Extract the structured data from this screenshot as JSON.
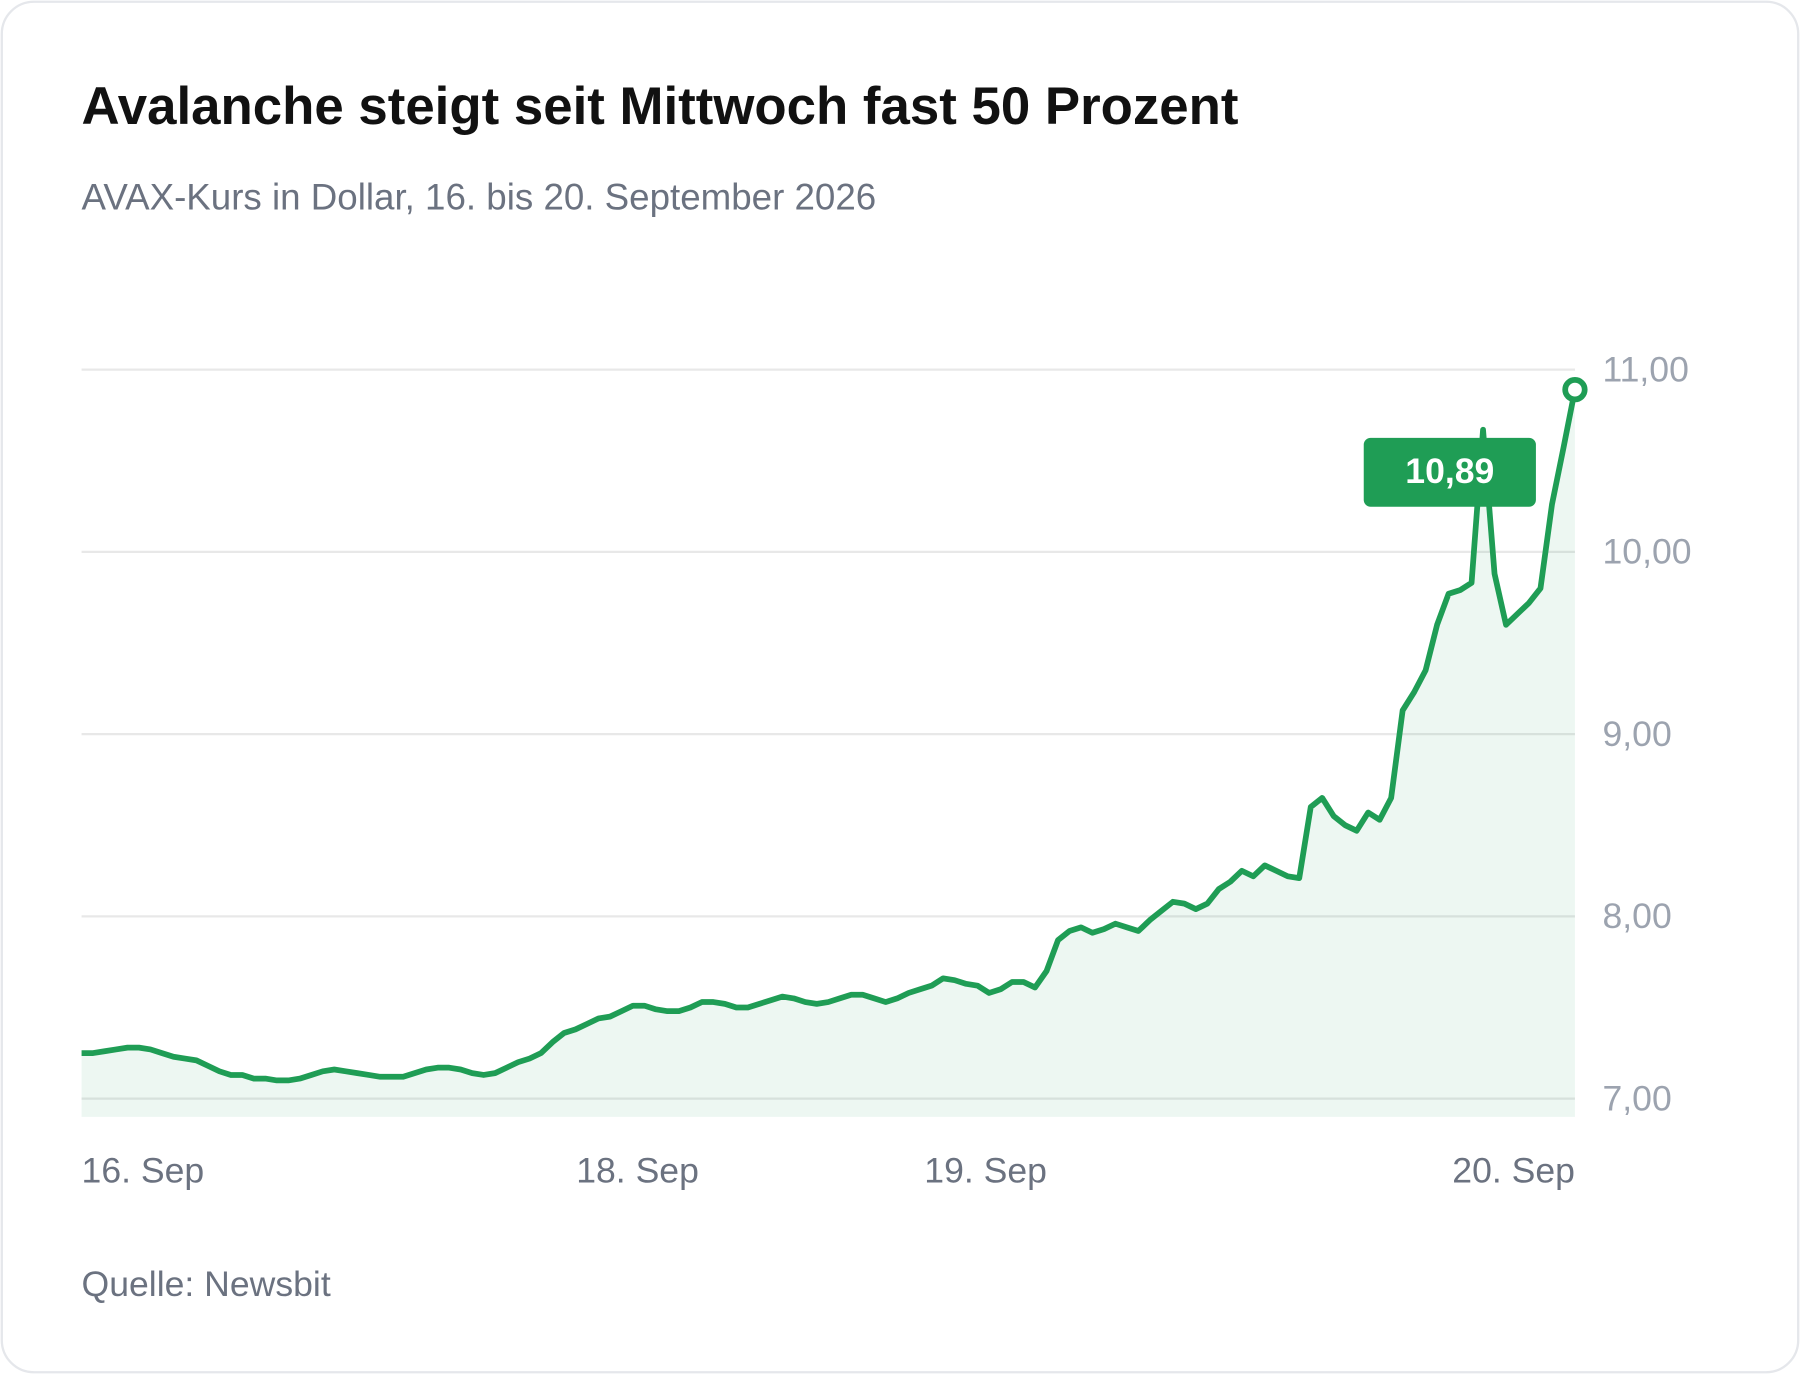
{
  "chart_data": {
    "type": "line",
    "title": "Avalanche steigt seit Mittwoch fast 50 Prozent",
    "subtitle": "AVAX-Kurs in Dollar, 16. bis 20. September 2026",
    "source": "Quelle: Newsbit",
    "x": [
      0,
      1,
      2,
      3,
      4,
      5,
      6,
      7,
      8,
      9,
      10,
      11,
      12,
      13,
      14,
      15,
      16,
      17,
      18,
      19,
      20,
      21,
      22,
      23,
      24,
      25,
      26,
      27,
      28,
      29,
      30,
      31,
      32,
      33,
      34,
      35,
      36,
      37,
      38,
      39,
      40,
      41,
      42,
      43,
      44,
      45,
      46,
      47,
      48,
      49,
      50,
      51,
      52,
      53,
      54,
      55,
      56,
      57,
      58,
      59,
      60,
      61,
      62,
      63,
      64,
      65,
      66,
      67,
      68,
      69,
      70,
      71,
      72,
      73,
      74,
      75,
      76,
      77,
      78,
      79,
      80,
      81,
      82,
      83,
      84,
      85,
      86,
      87,
      88,
      89,
      90,
      91,
      92,
      93,
      94,
      95,
      96,
      97,
      98,
      99,
      100,
      101,
      102,
      103,
      104,
      105,
      106,
      107,
      108,
      109,
      110,
      111,
      112,
      113,
      114,
      115,
      116,
      117,
      118,
      119,
      120,
      121,
      122,
      123,
      124,
      125,
      126,
      127,
      128,
      129,
      130
    ],
    "xlim": [
      0,
      130
    ],
    "xticks": [
      {
        "value": 0,
        "label": "16. Sep"
      },
      {
        "value": 48.4,
        "label": "18. Sep"
      },
      {
        "value": 78.7,
        "label": "19. Sep"
      },
      {
        "value": 130,
        "label": "20. Sep"
      }
    ],
    "ylim": [
      6.9,
      11
    ],
    "yticks": [
      {
        "value": 7,
        "label": "7,00"
      },
      {
        "value": 8,
        "label": "8,00"
      },
      {
        "value": 9,
        "label": "9,00"
      },
      {
        "value": 10,
        "label": "10,00"
      },
      {
        "value": 11,
        "label": "11,00"
      }
    ],
    "grid": true,
    "series": [
      {
        "color": "#1f9d55",
        "values": [
          7.25,
          7.25,
          7.26,
          7.27,
          7.28,
          7.28,
          7.27,
          7.25,
          7.23,
          7.22,
          7.21,
          7.18,
          7.15,
          7.13,
          7.13,
          7.11,
          7.11,
          7.1,
          7.1,
          7.11,
          7.13,
          7.15,
          7.16,
          7.15,
          7.14,
          7.13,
          7.12,
          7.12,
          7.12,
          7.14,
          7.16,
          7.17,
          7.17,
          7.16,
          7.14,
          7.13,
          7.14,
          7.17,
          7.2,
          7.22,
          7.25,
          7.31,
          7.36,
          7.38,
          7.41,
          7.44,
          7.45,
          7.48,
          7.51,
          7.51,
          7.49,
          7.48,
          7.48,
          7.5,
          7.53,
          7.53,
          7.52,
          7.5,
          7.5,
          7.52,
          7.54,
          7.56,
          7.55,
          7.53,
          7.52,
          7.53,
          7.55,
          7.57,
          7.57,
          7.55,
          7.53,
          7.55,
          7.58,
          7.6,
          7.62,
          7.66,
          7.65,
          7.63,
          7.62,
          7.58,
          7.6,
          7.64,
          7.64,
          7.61,
          7.7,
          7.87,
          7.92,
          7.94,
          7.91,
          7.93,
          7.96,
          7.94,
          7.92,
          7.98,
          8.03,
          8.08,
          8.07,
          8.04,
          8.07,
          8.15,
          8.19,
          8.25,
          8.22,
          8.28,
          8.25,
          8.22,
          8.21,
          8.6,
          8.65,
          8.55,
          8.5,
          8.47,
          8.57,
          8.53,
          8.65,
          9.13,
          9.23,
          9.35,
          9.6,
          9.77,
          9.79,
          9.83,
          10.67,
          9.88,
          9.6,
          9.66,
          9.72,
          9.8,
          10.26,
          10.57,
          10.89
        ],
        "value_labels": [
          null,
          null,
          null,
          null,
          null,
          null,
          null,
          null,
          null,
          null,
          null,
          null,
          null,
          null,
          null,
          null,
          null,
          null,
          null,
          null,
          null,
          null,
          null,
          null,
          null,
          null,
          null,
          null,
          null,
          null,
          null,
          null,
          null,
          null,
          null,
          null,
          null,
          null,
          null,
          null,
          null,
          null,
          null,
          null,
          null,
          null,
          null,
          null,
          null,
          null,
          null,
          null,
          null,
          null,
          null,
          null,
          null,
          null,
          null,
          null,
          null,
          null,
          null,
          null,
          null,
          null,
          null,
          null,
          null,
          null,
          null,
          null,
          null,
          null,
          null,
          null,
          null,
          null,
          null,
          null,
          null,
          null,
          null,
          null,
          null,
          null,
          null,
          null,
          null,
          null,
          null,
          null,
          null,
          null,
          null,
          null,
          null,
          null,
          null,
          null,
          null,
          null,
          null,
          null,
          null,
          null,
          null,
          null,
          null,
          null,
          null,
          null,
          null,
          null,
          null,
          null,
          null,
          null,
          null,
          null,
          null,
          null,
          null,
          null,
          null,
          null,
          null,
          null,
          null,
          null,
          "10,89"
        ]
      }
    ]
  }
}
